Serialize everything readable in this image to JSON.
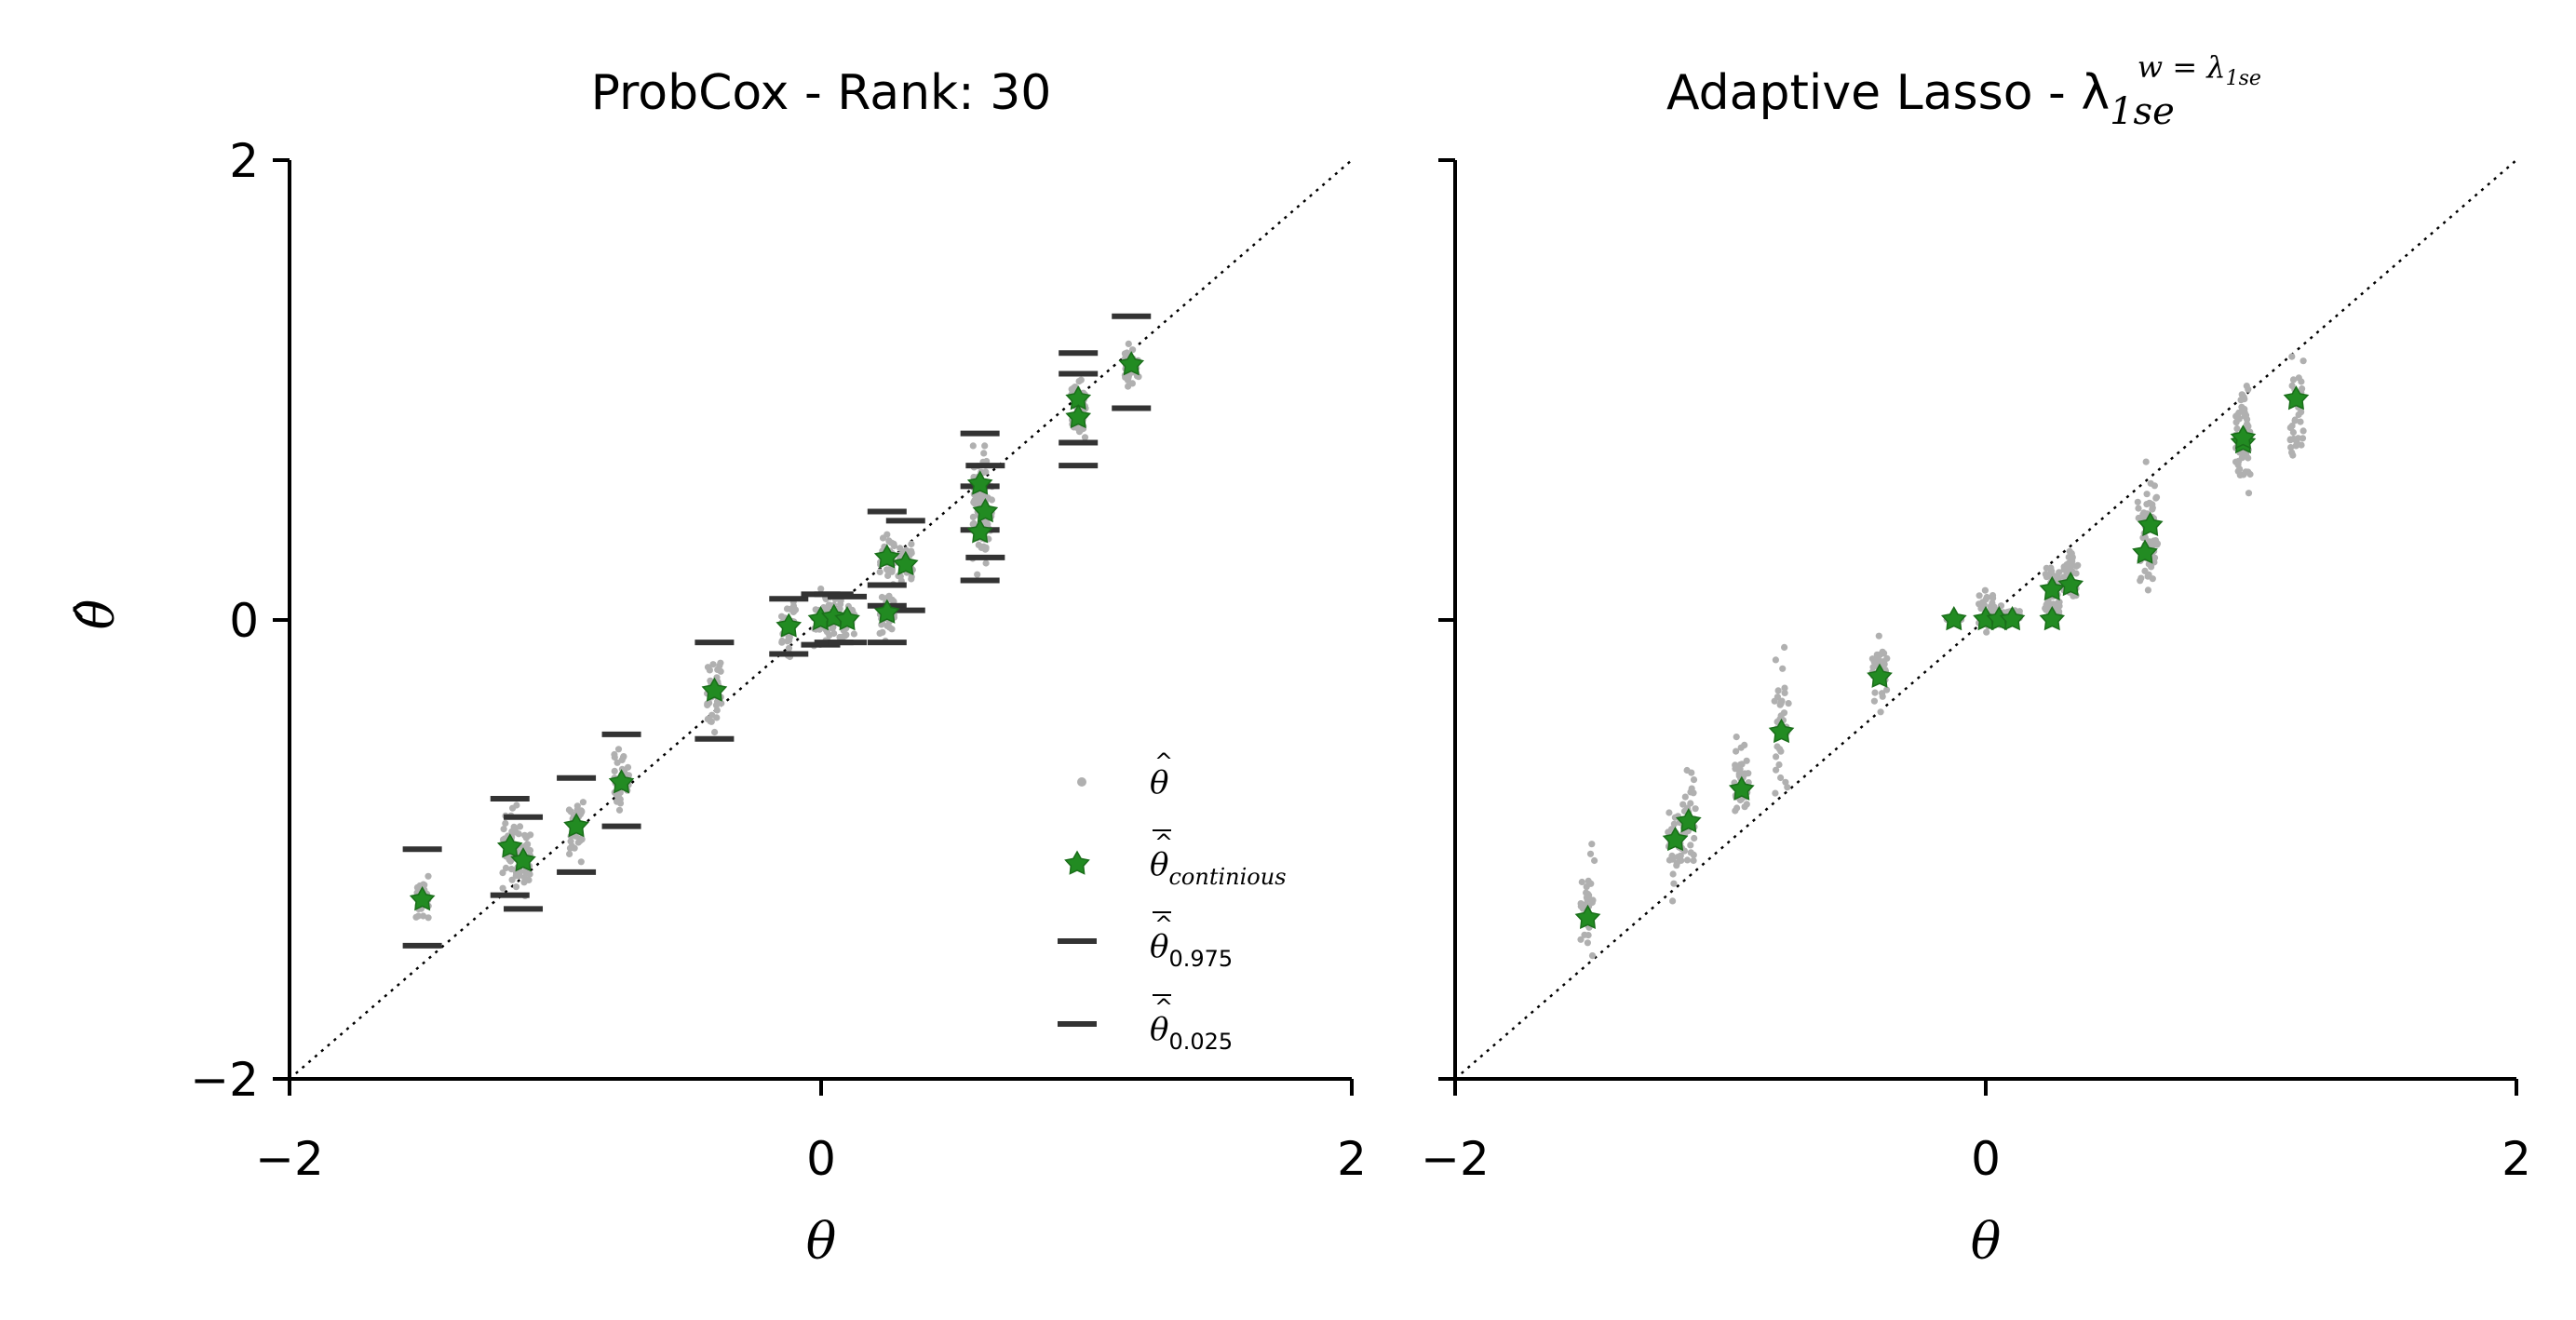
{
  "figure": {
    "background": "#ffffff",
    "colors": {
      "theta_hat": "#b0b0b0",
      "theta_mean": "#228b22",
      "theta_mean_edge": "#1a6e1a",
      "quantile": "#333333",
      "diagonal": "#000000",
      "axis": "#000000"
    }
  },
  "chart_data": [
    {
      "type": "scatter",
      "title": "ProbCox - Rank: 30",
      "xlabel": "θ",
      "ylabel": "θ̂",
      "xlim": [
        -2,
        2
      ],
      "ylim": [
        -2,
        2
      ],
      "xticks": [
        "−2",
        "0",
        "2"
      ],
      "yticks": [
        "−2",
        "0",
        "2"
      ],
      "grid": false,
      "legend_position": "lower-right",
      "legend": [
        {
          "symbol": "dot",
          "label": "θ̂",
          "base": "θ",
          "sub": ""
        },
        {
          "symbol": "star",
          "label": "θ̄̂_continious",
          "base": "θ",
          "sub": "continious"
        },
        {
          "symbol": "bar",
          "label": "θ̄̂_0.975",
          "base": "θ",
          "sub": "0.975"
        },
        {
          "symbol": "bar",
          "label": "θ̄̂_0.025",
          "base": "θ",
          "sub": "0.025"
        }
      ],
      "reference_line": {
        "from": [
          -2,
          -2
        ],
        "to": [
          2,
          2
        ],
        "style": "dotted"
      },
      "groups": [
        {
          "x": -1.5,
          "mean": -1.22,
          "q975": -1.0,
          "q025": -1.42,
          "spread": 0.06
        },
        {
          "x": -1.17,
          "mean": -0.99,
          "q975": -0.78,
          "q025": -1.2,
          "spread": 0.1
        },
        {
          "x": -1.12,
          "mean": -1.05,
          "q975": -0.86,
          "q025": -1.26,
          "spread": 0.08
        },
        {
          "x": -0.92,
          "mean": -0.9,
          "q975": -0.69,
          "q025": -1.1,
          "spread": 0.08
        },
        {
          "x": -0.75,
          "mean": -0.71,
          "q975": -0.5,
          "q025": -0.9,
          "spread": 0.1
        },
        {
          "x": -0.4,
          "mean": -0.31,
          "q975": -0.1,
          "q025": -0.52,
          "spread": 0.1
        },
        {
          "x": -0.12,
          "mean": -0.03,
          "q975": 0.09,
          "q025": -0.15,
          "spread": 0.07
        },
        {
          "x": 0.0,
          "mean": 0.0,
          "q975": 0.11,
          "q025": -0.11,
          "spread": 0.08
        },
        {
          "x": 0.05,
          "mean": 0.01,
          "q975": 0.11,
          "q025": -0.1,
          "spread": 0.06
        },
        {
          "x": 0.1,
          "mean": 0.0,
          "q975": 0.1,
          "q025": -0.1,
          "spread": 0.05
        },
        {
          "x": 0.25,
          "mean": 0.03,
          "q975": 0.15,
          "q025": -0.1,
          "spread": 0.07
        },
        {
          "x": 0.25,
          "mean": 0.27,
          "q975": 0.47,
          "q025": 0.06,
          "spread": 0.08
        },
        {
          "x": 0.32,
          "mean": 0.24,
          "q975": 0.43,
          "q025": 0.04,
          "spread": 0.07
        },
        {
          "x": 0.6,
          "mean": 0.38,
          "q975": 0.58,
          "q025": 0.17,
          "spread": 0.1
        },
        {
          "x": 0.6,
          "mean": 0.59,
          "q975": 0.81,
          "q025": 0.39,
          "spread": 0.12
        },
        {
          "x": 0.62,
          "mean": 0.47,
          "q975": 0.67,
          "q025": 0.27,
          "spread": 0.1
        },
        {
          "x": 0.97,
          "mean": 0.96,
          "q975": 1.16,
          "q025": 0.77,
          "spread": 0.08
        },
        {
          "x": 0.97,
          "mean": 0.88,
          "q975": 1.07,
          "q025": 0.67,
          "spread": 0.08
        },
        {
          "x": 1.17,
          "mean": 1.11,
          "q975": 1.32,
          "q025": 0.92,
          "spread": 0.06
        }
      ]
    },
    {
      "type": "scatter",
      "title": "Adaptive Lasso - λ",
      "title_sub": "1se",
      "title_sup_base": "w = λ",
      "title_sup_sub": "1se",
      "xlabel": "θ",
      "ylabel": "",
      "xlim": [
        -2,
        2
      ],
      "ylim": [
        -2,
        2
      ],
      "xticks": [
        "−2",
        "0",
        "2"
      ],
      "yticks": [],
      "grid": false,
      "reference_line": {
        "from": [
          -2,
          -2
        ],
        "to": [
          2,
          2
        ],
        "style": "dotted"
      },
      "groups": [
        {
          "x": -1.5,
          "mean": -1.3,
          "lo": -1.58,
          "hi": -0.95
        },
        {
          "x": -1.17,
          "mean": -0.96,
          "lo": -1.3,
          "hi": -0.65
        },
        {
          "x": -1.12,
          "mean": -0.88,
          "lo": -1.15,
          "hi": -0.6
        },
        {
          "x": -0.92,
          "mean": -0.74,
          "lo": -0.96,
          "hi": -0.42
        },
        {
          "x": -0.77,
          "mean": -0.49,
          "lo": -0.85,
          "hi": 0.0
        },
        {
          "x": -0.4,
          "mean": -0.25,
          "lo": -0.47,
          "hi": 0.0
        },
        {
          "x": -0.12,
          "mean": 0.0,
          "lo": 0.0,
          "hi": 0.0
        },
        {
          "x": 0.0,
          "mean": 0.0,
          "lo": -0.1,
          "hi": 0.18
        },
        {
          "x": 0.05,
          "mean": 0.0,
          "lo": -0.05,
          "hi": 0.08
        },
        {
          "x": 0.1,
          "mean": 0.0,
          "lo": 0.0,
          "hi": 0.05
        },
        {
          "x": 0.25,
          "mean": 0.0,
          "lo": 0.0,
          "hi": 0.1
        },
        {
          "x": 0.25,
          "mean": 0.13,
          "lo": 0.0,
          "hi": 0.3
        },
        {
          "x": 0.32,
          "mean": 0.15,
          "lo": 0.0,
          "hi": 0.38
        },
        {
          "x": 0.6,
          "mean": 0.29,
          "lo": 0.0,
          "hi": 0.73
        },
        {
          "x": 0.62,
          "mean": 0.41,
          "lo": 0.05,
          "hi": 0.72
        },
        {
          "x": 0.97,
          "mean": 0.77,
          "lo": 0.48,
          "hi": 1.15
        },
        {
          "x": 0.97,
          "mean": 0.79,
          "lo": 0.5,
          "hi": 1.1
        },
        {
          "x": 1.17,
          "mean": 0.96,
          "lo": 0.57,
          "hi": 1.23
        }
      ]
    }
  ]
}
